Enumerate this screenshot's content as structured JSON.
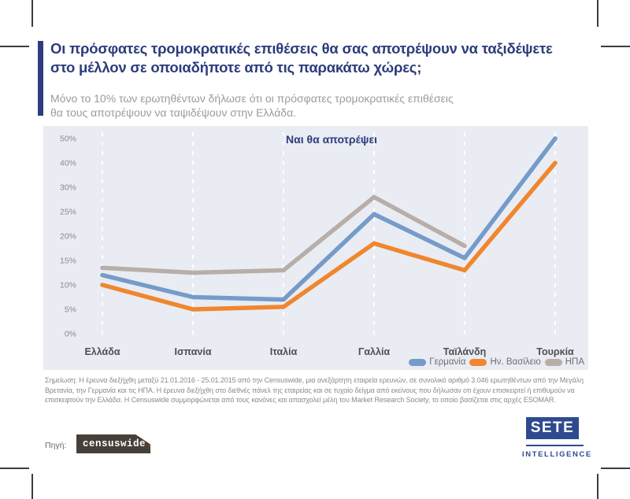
{
  "header": {
    "title": "Οι πρόσφατες τρομοκρατικές επιθέσεις θα σας αποτρέψουν να ταξιδέψετε\nστο μέλλον σε οποιαδήποτε από τις παρακάτω χώρες;",
    "subtitle": "Μόνο το 10% των ερωτηθέντων δήλωσε ότι οι πρόσφατες τρομοκρατικές επιθέσεις\nθα τους αποτρέψουν να ταψιδέψουν στην Ελλάδα."
  },
  "chart_data": {
    "type": "line",
    "annotation": "Ναι θα αποτρέψει",
    "categories": [
      "Ελλάδα",
      "Ισπανία",
      "Ιταλία",
      "Γαλλία",
      "Ταϊλάνδη",
      "Τουρκία"
    ],
    "series": [
      {
        "name": "Γερμανία",
        "color": "#759bc9",
        "values": [
          12,
          7.5,
          7,
          24.5,
          15.5,
          50
        ]
      },
      {
        "name": "Ην. Βασίλειο",
        "color": "#f0862e",
        "values": [
          10,
          5,
          5.5,
          18.5,
          13,
          40
        ]
      },
      {
        "name": "ΗΠΑ",
        "color": "#b7afa7",
        "values": [
          13.5,
          12.5,
          13,
          28,
          18,
          null
        ]
      }
    ],
    "y_ticks": [
      "50%",
      "40%",
      "30%",
      "25%",
      "20%",
      "15%",
      "10%",
      "5%",
      "0%"
    ],
    "y_tick_values": [
      50,
      40,
      30,
      25,
      20,
      15,
      10,
      5,
      0
    ],
    "ylabel": "",
    "xlabel": "",
    "grid": "vertical-dashed-white",
    "legend_position": "bottom-right",
    "panel_background": "#e9ecf3"
  },
  "footnote": "Σημείωση: Η έρευνα διεξήχθη μεταξύ 21.01.2016 - 25.01.2015 από την Censuswide, μια ανεξάρτητη εταιρεία ερευνών, σε συνολικό αριθμό 3.046 ερωτηθέντων από την Μεγάλη Βρετανία, την Γερμανία και τις ΗΠΑ. Η έρευνα διεξήχθη στο διεθνές πάνελ της εταιρείας και σε τυχαίο δείγμα από εκείνους που δήλωσαν οτι έχουν επισκειρτεί ή επιθυμούν να επισκεφτούν την Ελλάδα. Η Censuswide συμμορφώνεται από τους κανόνες και απασχολεί μέλη του Market Research Society, το οποίο βασίζεται στις αρχές ESOMAR.",
  "source": {
    "label": "Πηγή:",
    "logo_text": "censuswide",
    "logo_dot": ".",
    "logo_background": "#474039",
    "logo_dot_color": "#b5382f"
  },
  "branding": {
    "logo_text": "SETE",
    "tagline": "INTELLIGENCE",
    "color": "#2f4a8f"
  },
  "colors": {
    "accent_navy": "#2c3c7c",
    "subtitle_gray": "#9b9b9b",
    "panel_bg": "#e9ecf3",
    "axis_label": "#4f4f4f",
    "tick_label": "#8a8a8a"
  }
}
